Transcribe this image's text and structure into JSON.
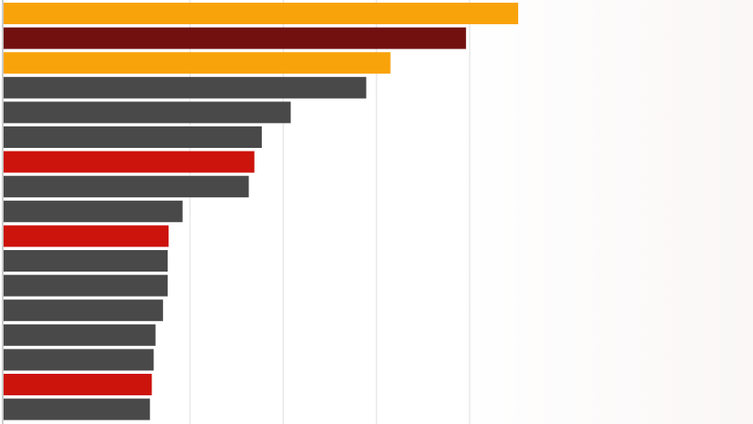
{
  "chart_data": {
    "type": "bar",
    "orientation": "horizontal",
    "values": [
      5.52,
      4.96,
      4.15,
      3.89,
      3.08,
      2.77,
      2.69,
      2.63,
      1.92,
      1.77,
      1.76,
      1.76,
      1.71,
      1.63,
      1.61,
      1.59,
      1.57
    ],
    "colors": [
      "#f9a30a",
      "#721010",
      "#f9a30a",
      "#4a4949",
      "#4a4949",
      "#4a4949",
      "#cc130c",
      "#4a4949",
      "#4a4949",
      "#cc130c",
      "#4a4949",
      "#4a4949",
      "#4a4949",
      "#4a4949",
      "#4a4949",
      "#cc130c",
      "#4a4949"
    ],
    "xlim": [
      0,
      8
    ],
    "xticks": [
      2,
      3,
      4,
      5
    ],
    "grid": true
  }
}
